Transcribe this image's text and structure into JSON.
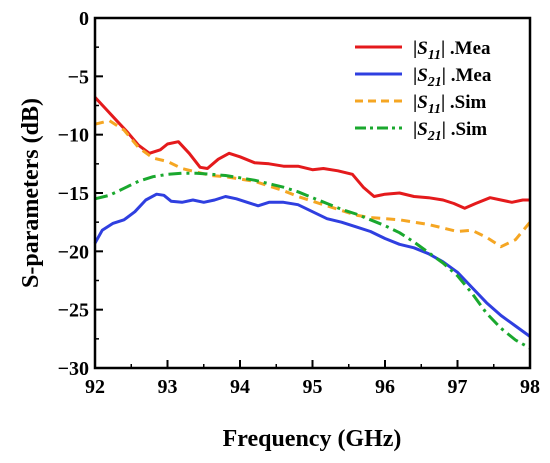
{
  "chart_data": {
    "type": "line",
    "xlabel": "Frequency (GHz)",
    "ylabel": "S-parameters (dB)",
    "xlim": [
      92,
      98
    ],
    "ylim": [
      -30,
      0
    ],
    "x_ticks": [
      "92",
      "93",
      "94",
      "95",
      "96",
      "97",
      "98"
    ],
    "y_ticks": [
      "0",
      "−5",
      "−10",
      "−15",
      "−20",
      "−25",
      "−30"
    ],
    "grid": false,
    "legend_position": "top-right",
    "series": [
      {
        "name": "|S11| .Mea",
        "legend": {
          "pre": "|",
          "base": "S",
          "sub": "11",
          "post": "| .Mea"
        },
        "color": "#e41a1c",
        "style": "solid",
        "points": [
          [
            92.0,
            -6.8
          ],
          [
            92.15,
            -7.8
          ],
          [
            92.3,
            -8.8
          ],
          [
            92.45,
            -9.8
          ],
          [
            92.6,
            -10.9
          ],
          [
            92.75,
            -11.6
          ],
          [
            92.9,
            -11.3
          ],
          [
            93.0,
            -10.8
          ],
          [
            93.15,
            -10.6
          ],
          [
            93.3,
            -11.6
          ],
          [
            93.45,
            -12.8
          ],
          [
            93.55,
            -12.9
          ],
          [
            93.7,
            -12.1
          ],
          [
            93.85,
            -11.6
          ],
          [
            94.0,
            -11.9
          ],
          [
            94.2,
            -12.4
          ],
          [
            94.4,
            -12.5
          ],
          [
            94.6,
            -12.7
          ],
          [
            94.8,
            -12.7
          ],
          [
            95.0,
            -13.0
          ],
          [
            95.15,
            -12.9
          ],
          [
            95.35,
            -13.1
          ],
          [
            95.55,
            -13.4
          ],
          [
            95.7,
            -14.5
          ],
          [
            95.85,
            -15.3
          ],
          [
            96.0,
            -15.1
          ],
          [
            96.2,
            -15.0
          ],
          [
            96.4,
            -15.3
          ],
          [
            96.6,
            -15.4
          ],
          [
            96.8,
            -15.6
          ],
          [
            96.95,
            -15.9
          ],
          [
            97.1,
            -16.3
          ],
          [
            97.25,
            -15.9
          ],
          [
            97.45,
            -15.4
          ],
          [
            97.6,
            -15.6
          ],
          [
            97.75,
            -15.8
          ],
          [
            97.9,
            -15.6
          ],
          [
            98.0,
            -15.6
          ]
        ]
      },
      {
        "name": "|S21| .Mea",
        "legend": {
          "pre": "|",
          "base": "S",
          "sub": "21",
          "post": "| .Mea"
        },
        "color": "#2f3fe0",
        "style": "solid",
        "points": [
          [
            92.0,
            -19.3
          ],
          [
            92.1,
            -18.2
          ],
          [
            92.25,
            -17.6
          ],
          [
            92.4,
            -17.3
          ],
          [
            92.55,
            -16.6
          ],
          [
            92.7,
            -15.6
          ],
          [
            92.85,
            -15.1
          ],
          [
            92.95,
            -15.2
          ],
          [
            93.05,
            -15.7
          ],
          [
            93.2,
            -15.8
          ],
          [
            93.35,
            -15.6
          ],
          [
            93.5,
            -15.8
          ],
          [
            93.65,
            -15.6
          ],
          [
            93.8,
            -15.3
          ],
          [
            93.95,
            -15.5
          ],
          [
            94.1,
            -15.8
          ],
          [
            94.25,
            -16.1
          ],
          [
            94.4,
            -15.8
          ],
          [
            94.6,
            -15.8
          ],
          [
            94.8,
            -16.0
          ],
          [
            95.0,
            -16.6
          ],
          [
            95.2,
            -17.2
          ],
          [
            95.4,
            -17.5
          ],
          [
            95.6,
            -17.9
          ],
          [
            95.8,
            -18.3
          ],
          [
            96.0,
            -18.9
          ],
          [
            96.2,
            -19.4
          ],
          [
            96.4,
            -19.7
          ],
          [
            96.6,
            -20.2
          ],
          [
            96.8,
            -20.9
          ],
          [
            97.0,
            -21.8
          ],
          [
            97.2,
            -23.1
          ],
          [
            97.4,
            -24.4
          ],
          [
            97.6,
            -25.5
          ],
          [
            97.8,
            -26.4
          ],
          [
            98.0,
            -27.3
          ]
        ]
      },
      {
        "name": "|S11| .Sim",
        "legend": {
          "pre": "|",
          "base": "S",
          "sub": "11",
          "post": "| .Sim"
        },
        "color": "#f5a623",
        "style": "dashed",
        "points": [
          [
            92.0,
            -9.1
          ],
          [
            92.2,
            -8.8
          ],
          [
            92.4,
            -9.6
          ],
          [
            92.6,
            -11.1
          ],
          [
            92.8,
            -12.0
          ],
          [
            93.0,
            -12.3
          ],
          [
            93.2,
            -12.9
          ],
          [
            93.4,
            -13.2
          ],
          [
            93.6,
            -13.5
          ],
          [
            93.8,
            -13.6
          ],
          [
            94.0,
            -13.8
          ],
          [
            94.2,
            -14.0
          ],
          [
            94.4,
            -14.4
          ],
          [
            94.6,
            -14.8
          ],
          [
            94.8,
            -15.3
          ],
          [
            95.0,
            -15.7
          ],
          [
            95.2,
            -16.1
          ],
          [
            95.4,
            -16.5
          ],
          [
            95.6,
            -16.9
          ],
          [
            95.8,
            -17.1
          ],
          [
            96.0,
            -17.2
          ],
          [
            96.2,
            -17.3
          ],
          [
            96.4,
            -17.5
          ],
          [
            96.6,
            -17.7
          ],
          [
            96.8,
            -18.0
          ],
          [
            97.0,
            -18.3
          ],
          [
            97.2,
            -18.2
          ],
          [
            97.4,
            -18.8
          ],
          [
            97.6,
            -19.6
          ],
          [
            97.8,
            -19.0
          ],
          [
            98.0,
            -17.5
          ]
        ]
      },
      {
        "name": "|S21| .Sim",
        "legend": {
          "pre": "|",
          "base": "S",
          "sub": "21",
          "post": "| .Sim"
        },
        "color": "#1aa82e",
        "style": "dashdot",
        "points": [
          [
            92.0,
            -15.5
          ],
          [
            92.2,
            -15.2
          ],
          [
            92.4,
            -14.6
          ],
          [
            92.6,
            -14.0
          ],
          [
            92.8,
            -13.6
          ],
          [
            93.0,
            -13.4
          ],
          [
            93.2,
            -13.3
          ],
          [
            93.4,
            -13.3
          ],
          [
            93.6,
            -13.4
          ],
          [
            93.8,
            -13.5
          ],
          [
            94.0,
            -13.7
          ],
          [
            94.2,
            -13.9
          ],
          [
            94.4,
            -14.2
          ],
          [
            94.6,
            -14.5
          ],
          [
            94.8,
            -14.9
          ],
          [
            95.0,
            -15.4
          ],
          [
            95.2,
            -15.9
          ],
          [
            95.4,
            -16.4
          ],
          [
            95.6,
            -16.8
          ],
          [
            95.8,
            -17.3
          ],
          [
            96.0,
            -17.8
          ],
          [
            96.2,
            -18.4
          ],
          [
            96.4,
            -19.2
          ],
          [
            96.6,
            -20.1
          ],
          [
            96.8,
            -21.0
          ],
          [
            97.0,
            -22.1
          ],
          [
            97.2,
            -23.6
          ],
          [
            97.4,
            -25.3
          ],
          [
            97.6,
            -26.6
          ],
          [
            97.8,
            -27.6
          ],
          [
            98.0,
            -28.3
          ]
        ]
      }
    ]
  }
}
